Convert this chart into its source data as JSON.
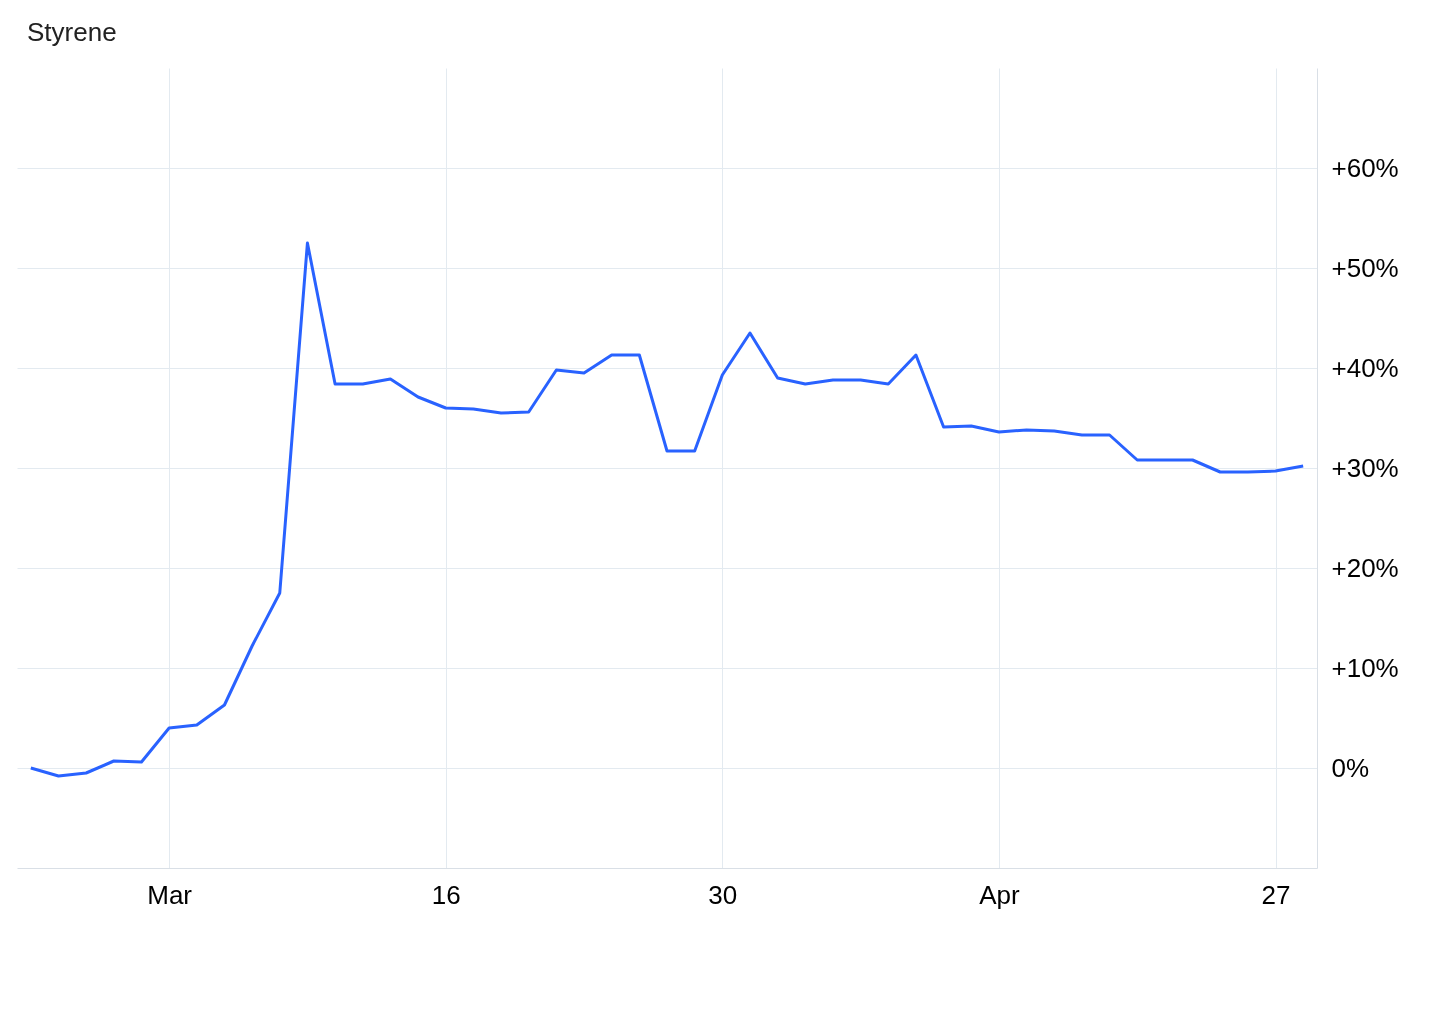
{
  "chart_data": {
    "type": "line",
    "title": "Styrene",
    "categories": [
      null,
      null,
      null,
      null,
      null,
      "Mar",
      null,
      null,
      null,
      null,
      null,
      null,
      null,
      null,
      null,
      "16",
      null,
      null,
      null,
      null,
      null,
      null,
      null,
      null,
      null,
      "30",
      null,
      null,
      null,
      null,
      null,
      null,
      null,
      null,
      null,
      "Apr",
      null,
      null,
      null,
      null,
      null,
      null,
      null,
      null,
      null,
      "27",
      null
    ],
    "series": [
      {
        "color": "#2962ff",
        "values": [
          0,
          -0.8,
          -0.5,
          0.7,
          0.6,
          4.0,
          4.3,
          6.3,
          12.2,
          17.5,
          52.5,
          38.4,
          38.4,
          38.9,
          37.1,
          36.0,
          35.9,
          35.5,
          35.6,
          39.8,
          39.5,
          41.3,
          41.3,
          31.7,
          31.7,
          39.3,
          43.5,
          39.0,
          38.4,
          38.8,
          38.8,
          38.4,
          41.3,
          34.1,
          34.2,
          33.6,
          33.8,
          33.7,
          33.3,
          33.3,
          30.8,
          30.8,
          30.8,
          29.6,
          29.6,
          29.7,
          30.2
        ]
      }
    ],
    "ylim": [
      -10,
      70
    ],
    "yticks": [
      {
        "value": 0,
        "label": "0%"
      },
      {
        "value": 10,
        "label": "+10%"
      },
      {
        "value": 20,
        "label": "+20%"
      },
      {
        "value": 30,
        "label": "+30%"
      },
      {
        "value": 40,
        "label": "+40%"
      },
      {
        "value": 50,
        "label": "+50%"
      },
      {
        "value": 60,
        "label": "+60%"
      }
    ],
    "grid": true,
    "marker": "none",
    "line_style": "solid"
  }
}
